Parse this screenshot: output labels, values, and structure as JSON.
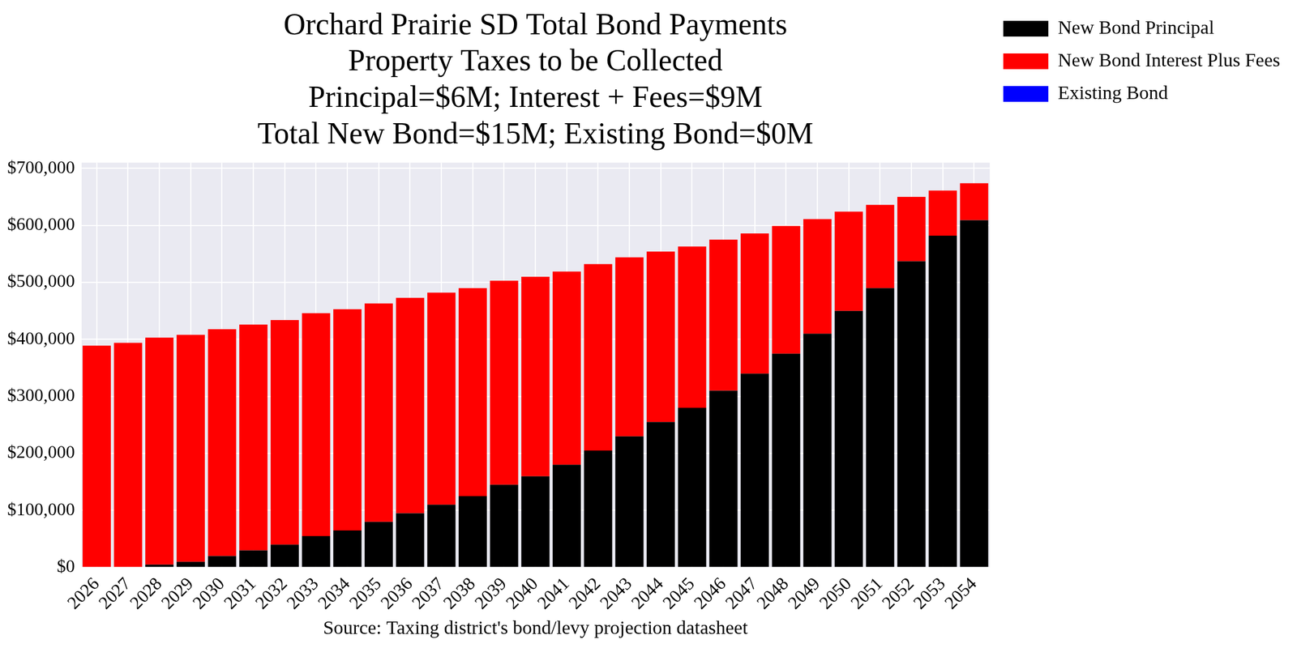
{
  "chart_data": {
    "type": "bar",
    "stacked": true,
    "title": [
      "Orchard Prairie SD Total Bond Payments",
      "Property Taxes to be Collected",
      "Principal=$6M; Interest + Fees=$9M",
      "Total New Bond=$15M; Existing Bond=$0M"
    ],
    "x_label": "Source: Taxing district's bond/levy projection datasheet",
    "categories": [
      "2026",
      "2027",
      "2028",
      "2029",
      "2030",
      "2031",
      "2032",
      "2033",
      "2034",
      "2035",
      "2036",
      "2037",
      "2038",
      "2039",
      "2040",
      "2041",
      "2042",
      "2043",
      "2044",
      "2045",
      "2046",
      "2047",
      "2048",
      "2049",
      "2050",
      "2051",
      "2052",
      "2053",
      "2054"
    ],
    "series": [
      {
        "name": "New Bond Principal",
        "color": "#000000",
        "values": [
          0,
          0,
          5000,
          10000,
          20000,
          30000,
          40000,
          55000,
          65000,
          80000,
          95000,
          110000,
          125000,
          145000,
          160000,
          180000,
          205000,
          230000,
          255000,
          280000,
          310000,
          340000,
          375000,
          410000,
          450000,
          490000,
          537000,
          582000,
          609000
        ]
      },
      {
        "name": "New Bond Interest Plus Fees",
        "color": "#ff0000",
        "values": [
          389000,
          394000,
          398000,
          398000,
          398000,
          396000,
          394000,
          391000,
          388000,
          383000,
          378000,
          372000,
          365000,
          358000,
          350000,
          339000,
          327000,
          314000,
          299000,
          283000,
          265000,
          246000,
          224000,
          201000,
          174000,
          146000,
          113000,
          79000,
          65000
        ]
      },
      {
        "name": "Existing Bond",
        "color": "#0000ff",
        "values": [
          0,
          0,
          0,
          0,
          0,
          0,
          0,
          0,
          0,
          0,
          0,
          0,
          0,
          0,
          0,
          0,
          0,
          0,
          0,
          0,
          0,
          0,
          0,
          0,
          0,
          0,
          0,
          0,
          0
        ]
      }
    ],
    "ylim": [
      0,
      710000
    ],
    "yticks": [
      {
        "value": 0,
        "label": "$0"
      },
      {
        "value": 100000,
        "label": "$100,000"
      },
      {
        "value": 200000,
        "label": "$200,000"
      },
      {
        "value": 300000,
        "label": "$300,000"
      },
      {
        "value": 400000,
        "label": "$400,000"
      },
      {
        "value": 500000,
        "label": "$500,000"
      },
      {
        "value": 600000,
        "label": "$600,000"
      },
      {
        "value": 700000,
        "label": "$700,000"
      }
    ],
    "grid": true,
    "legend": "right"
  }
}
